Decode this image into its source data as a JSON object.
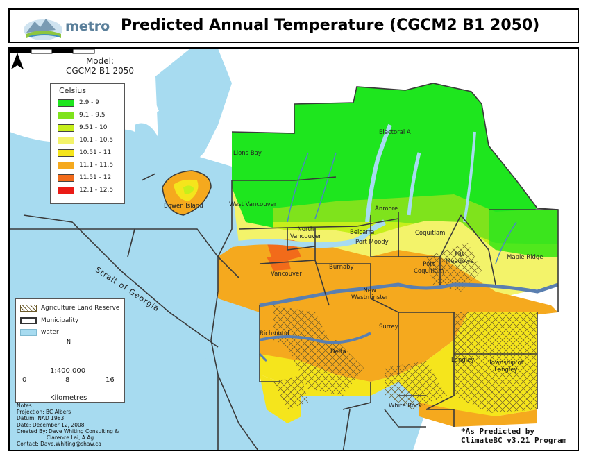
{
  "header": {
    "logo_text": "metro",
    "title": "Predicted Annual Temperature (CGCM2 B1 2050)"
  },
  "model": {
    "line1": "Model:",
    "line2": "CGCM2 B1 2050"
  },
  "legend": {
    "title": "Celsius",
    "classes": [
      {
        "label": "2.9 - 9",
        "color": "#1ee61e"
      },
      {
        "label": "9.1 - 9.5",
        "color": "#7fe31c"
      },
      {
        "label": "9.51 - 10",
        "color": "#c6ef1b"
      },
      {
        "label": "10.1 - 10.5",
        "color": "#f3f36a"
      },
      {
        "label": "10.51 - 11",
        "color": "#f5e51c"
      },
      {
        "label": "11.1 - 11.5",
        "color": "#f5a91e"
      },
      {
        "label": "11.51 - 12",
        "color": "#f26b1a"
      },
      {
        "label": "12.1 - 12.5",
        "color": "#ea1b16"
      }
    ]
  },
  "reference_legend": {
    "agriculture": "Agriculture Land Reserve",
    "municipality": "Municipality",
    "water": "water"
  },
  "scale": {
    "ratio": "1:400,000",
    "ticks": [
      "0",
      "8",
      "16"
    ],
    "unit": "Kilometres",
    "north": "N"
  },
  "notes": [
    "Notes:",
    "Projection: BC Albers",
    "Datum: NAD 1983",
    "Date: December 12, 2008",
    "Created By: Dave Whiting Consulting &",
    "                  Clarence Lai, A.Ag.",
    "Contact: Dave.Whiting@shaw.ca"
  ],
  "credit": {
    "line1": "*As Predicted by",
    "line2": "ClimateBC v3.21 Program"
  },
  "strait": "Strait of Georgia",
  "places": {
    "lions_bay": "Lions Bay",
    "electoral_a": "Electoral A",
    "bowen_island": "Bowen Island",
    "west_vancouver": "West Vancouver",
    "north_vancouver": "North\nVancouver",
    "belcarra": "Belcarra",
    "anmore": "Anmore",
    "port_moody": "Port Moody",
    "coquitlam": "Coquitlam",
    "pitt_meadows": "Pitt\nMeadows",
    "maple_ridge": "Maple Ridge",
    "port_coquitlam": "Port\nCoquitlam",
    "burnaby": "Burnaby",
    "vancouver": "Vancouver",
    "new_westminster": "New\nWestminster",
    "richmond": "Richmond",
    "surrey": "Surrey",
    "delta": "Delta",
    "langley": "Langley",
    "township_of_langley": "Township of\nLangley",
    "white_rock": "White Rock"
  }
}
